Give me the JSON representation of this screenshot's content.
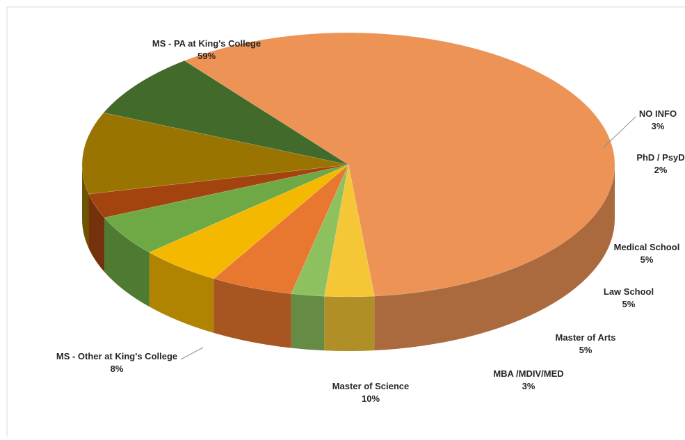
{
  "chart_data": {
    "type": "pie",
    "title": "",
    "slices": [
      {
        "label": "MS - PA at King's College",
        "value": 59,
        "value_label": "59%",
        "color": "#ED9355"
      },
      {
        "label": "NO INFO",
        "value": 3,
        "value_label": "3%",
        "color": "#F5C635"
      },
      {
        "label": "PhD / PsyD",
        "value": 2,
        "value_label": "2%",
        "color": "#8DC160"
      },
      {
        "label": "Medical School",
        "value": 5,
        "value_label": "5%",
        "color": "#E8782F"
      },
      {
        "label": "Law School",
        "value": 5,
        "value_label": "5%",
        "color": "#F5B800"
      },
      {
        "label": "Master of Arts",
        "value": 5,
        "value_label": "5%",
        "color": "#6EA946"
      },
      {
        "label": "MBA /MDIV/MED",
        "value": 3,
        "value_label": "3%",
        "color": "#A3440F"
      },
      {
        "label": "Master of Science",
        "value": 10,
        "value_label": "10%",
        "color": "#9A7400"
      },
      {
        "label": "MS - Other at King's College",
        "value": 8,
        "value_label": "8%",
        "color": "#426A2B"
      }
    ],
    "legend": "none",
    "style": "3d-exploded-perspective"
  }
}
